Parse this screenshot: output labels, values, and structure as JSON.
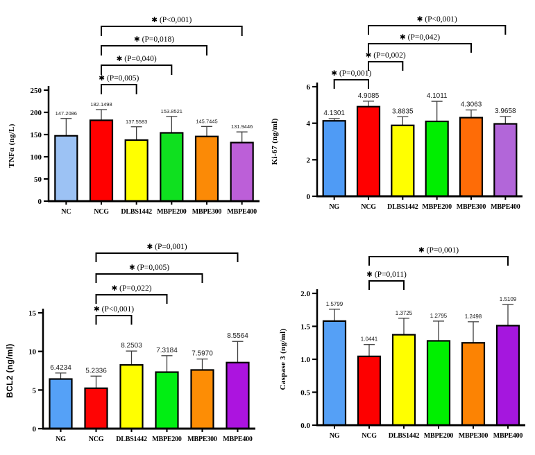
{
  "figure": {
    "background": "#ffffff",
    "description": "Four-panel bar chart figure comparing biomarker levels across treatment groups"
  },
  "chart_data": [
    {
      "type": "bar",
      "panel": "top-left",
      "title": "",
      "xlabel": "",
      "ylabel": "TNFα (ng/L)",
      "categories": [
        "NC",
        "NCG",
        "DLBS1442",
        "MBPE200",
        "MBPE300",
        "MBPE400"
      ],
      "values": [
        147.2086,
        182.1498,
        137.5583,
        153.8521,
        145.7445,
        131.9446
      ],
      "value_labels": [
        "147.2086",
        "182.1498",
        "137.5583",
        "153.8521",
        "145.7445",
        "131.9446"
      ],
      "errors": [
        39.0,
        24.0,
        30.0,
        37.0,
        22.5,
        24.0
      ],
      "bar_colors": [
        "#9CC2F4",
        "#FF0000",
        "#FFFF00",
        "#0FE01F",
        "#FB8A06",
        "#BC5FD8"
      ],
      "ylim": [
        0,
        250
      ],
      "yticks": [
        0,
        50,
        100,
        150,
        200,
        250
      ],
      "ytick_labels": [
        "0",
        "50",
        "100",
        "150",
        "200",
        "250"
      ],
      "grid": false,
      "legend": null,
      "brackets": [
        {
          "from": "NCG",
          "to": "DLBS1442",
          "star": "✱",
          "p_label": "(P=0,005)",
          "level": 0
        },
        {
          "from": "NCG",
          "to": "MBPE200",
          "star": "✱",
          "p_label": "(P=0,040)",
          "level": 1
        },
        {
          "from": "NCG",
          "to": "MBPE300",
          "star": "✱",
          "p_label": "(P=0,018)",
          "level": 2
        },
        {
          "from": "NCG",
          "to": "MBPE400",
          "star": "✱",
          "p_label": "(P<0,001)",
          "level": 3
        }
      ]
    },
    {
      "type": "bar",
      "panel": "top-right",
      "title": "",
      "xlabel": "",
      "ylabel": "Ki-67 (ng/ml)",
      "categories": [
        "NG",
        "NCG",
        "DLBS1442",
        "MBPE200",
        "MBPE300",
        "MBPE400"
      ],
      "values": [
        4.1301,
        4.9085,
        3.8835,
        4.1011,
        4.3063,
        3.9658
      ],
      "value_labels": [
        "4.1301",
        "4.9085",
        "3.8835",
        "4.1011",
        "4.3063",
        "3.9658"
      ],
      "errors": [
        0.12,
        0.3,
        0.47,
        1.1,
        0.42,
        0.4
      ],
      "bar_colors": [
        "#4F9BF5",
        "#FF0000",
        "#FFFF00",
        "#00EE00",
        "#FE6C07",
        "#B266D9"
      ],
      "ylim": [
        0,
        6
      ],
      "yticks": [
        0,
        2,
        4,
        6
      ],
      "ytick_labels": [
        "0",
        "2",
        "4",
        "6"
      ],
      "grid": false,
      "legend": null,
      "brackets": [
        {
          "from": "NG",
          "to": "NCG",
          "star": "✱",
          "p_label": "(P=0,001)",
          "level": 0
        },
        {
          "from": "NCG",
          "to": "DLBS1442",
          "star": "✱",
          "p_label": "(P=0,002)",
          "level": 1
        },
        {
          "from": "NCG",
          "to": "MBPE300",
          "star": "✱",
          "p_label": "(P=0,042)",
          "level": 2
        },
        {
          "from": "NCG",
          "to": "MBPE400",
          "star": "✱",
          "p_label": "(P<0,001)",
          "level": 3
        }
      ]
    },
    {
      "type": "bar",
      "panel": "bottom-left",
      "title": "",
      "xlabel": "",
      "ylabel": "BCL2 (ng/ml)",
      "categories": [
        "NG",
        "NCG",
        "DLBS1442",
        "MBPE200",
        "MBPE300",
        "MBPE400"
      ],
      "values": [
        6.4234,
        5.2336,
        8.2503,
        7.3184,
        7.597,
        8.5564
      ],
      "value_labels": [
        "6.4234",
        "5.2336",
        "8.2503",
        "7.3184",
        "7.5970",
        "8.5564"
      ],
      "errors": [
        0.78,
        1.57,
        1.8,
        2.13,
        1.42,
        2.74
      ],
      "bar_colors": [
        "#55A1F7",
        "#FE0404",
        "#FFFF00",
        "#01EE13",
        "#FD8D05",
        "#AC14DF"
      ],
      "ylim": [
        0,
        15
      ],
      "yticks": [
        0,
        5,
        10,
        15
      ],
      "ytick_labels": [
        "0",
        "5",
        "10",
        "15"
      ],
      "grid": false,
      "legend": null,
      "brackets": [
        {
          "from": "NCG",
          "to": "DLBS1442",
          "star": "✱",
          "p_label": "(P<0,001)",
          "level": 0
        },
        {
          "from": "NCG",
          "to": "MBPE200",
          "star": "✱",
          "p_label": "(P=0,022)",
          "level": 1
        },
        {
          "from": "NCG",
          "to": "MBPE300",
          "star": "✱",
          "p_label": "(P=0,005)",
          "level": 2
        },
        {
          "from": "NCG",
          "to": "MBPE400",
          "star": "✱",
          "p_label": "(P=0,001)",
          "level": 3
        }
      ]
    },
    {
      "type": "bar",
      "panel": "bottom-right",
      "title": "",
      "xlabel": "",
      "ylabel": "Caspase 3 (ng/ml)",
      "categories": [
        "NG",
        "NCG",
        "DLBS1442",
        "MBPE200",
        "MBPE300",
        "MBPE400"
      ],
      "values": [
        1.5799,
        1.0441,
        1.3725,
        1.2795,
        1.2498,
        1.5109
      ],
      "value_labels": [
        "1.5799",
        "1.0441",
        "1.3725",
        "1.2795",
        "1.2498",
        "1.5109"
      ],
      "errors": [
        0.18,
        0.18,
        0.25,
        0.3,
        0.32,
        0.32
      ],
      "bar_colors": [
        "#55A0F6",
        "#FD0000",
        "#FFFF00",
        "#00F000",
        "#FC8303",
        "#A517DE"
      ],
      "ylim": [
        0,
        2
      ],
      "yticks": [
        0,
        0.5,
        1,
        1.5,
        2
      ],
      "ytick_labels": [
        "0.0",
        "0.5",
        "1.0",
        "1.5",
        "2.0"
      ],
      "grid": false,
      "legend": null,
      "brackets": [
        {
          "from": "NCG",
          "to": "DLBS1442",
          "star": "✱",
          "p_label": "(P=0,011)",
          "level": 0
        },
        {
          "from": "NCG",
          "to": "MBPE400",
          "star": "✱",
          "p_label": "(P=0,001)",
          "level": 1
        }
      ]
    }
  ]
}
